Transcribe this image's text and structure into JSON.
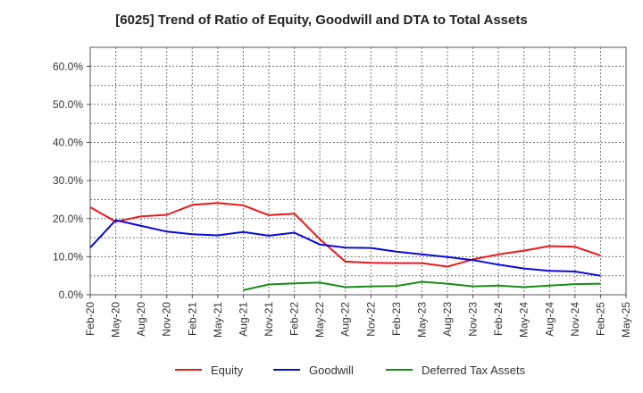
{
  "chart_data": {
    "type": "line",
    "title": "[6025]  Trend of Ratio of Equity, Goodwill and DTA to Total Assets",
    "xlabel": "",
    "ylabel": "",
    "ylim": [
      0,
      65
    ],
    "yticks": [
      0,
      10,
      20,
      30,
      40,
      50,
      60
    ],
    "ytick_labels": [
      "0.0%",
      "10.0%",
      "20.0%",
      "30.0%",
      "40.0%",
      "50.0%",
      "60.0%"
    ],
    "x_tick_labels": [
      "Feb-20",
      "May-20",
      "Aug-20",
      "Nov-20",
      "Feb-21",
      "May-21",
      "Aug-21",
      "Nov-21",
      "Feb-22",
      "May-22",
      "Aug-22",
      "Nov-22",
      "Feb-23",
      "May-23",
      "Aug-23",
      "Nov-23",
      "Feb-24",
      "May-24",
      "Aug-24",
      "Nov-24",
      "Feb-25",
      "May-25"
    ],
    "grid": true,
    "legend_position": "bottom",
    "series": [
      {
        "name": "Equity",
        "color": "#e8191b",
        "values": [
          23.0,
          19.2,
          20.6,
          21.0,
          23.6,
          24.1,
          23.5,
          20.9,
          21.3,
          14.6,
          8.7,
          8.4,
          8.3,
          8.3,
          7.4,
          9.3,
          10.6,
          11.6,
          12.8,
          12.6,
          10.3,
          null
        ]
      },
      {
        "name": "Goodwill",
        "color": "#0a0ad4",
        "values": [
          12.4,
          19.6,
          18.1,
          16.6,
          15.9,
          15.6,
          16.5,
          15.5,
          16.3,
          13.2,
          12.4,
          12.3,
          11.3,
          10.6,
          9.9,
          9.1,
          7.9,
          6.9,
          6.3,
          6.1,
          5.0,
          null
        ]
      },
      {
        "name": "Deferred Tax Assets",
        "color": "#1a8a1a",
        "values": [
          null,
          null,
          null,
          null,
          null,
          null,
          1.2,
          2.7,
          3.0,
          3.2,
          2.0,
          2.2,
          2.3,
          3.4,
          2.9,
          2.2,
          2.4,
          2.0,
          2.4,
          2.8,
          2.9,
          null
        ]
      }
    ]
  }
}
